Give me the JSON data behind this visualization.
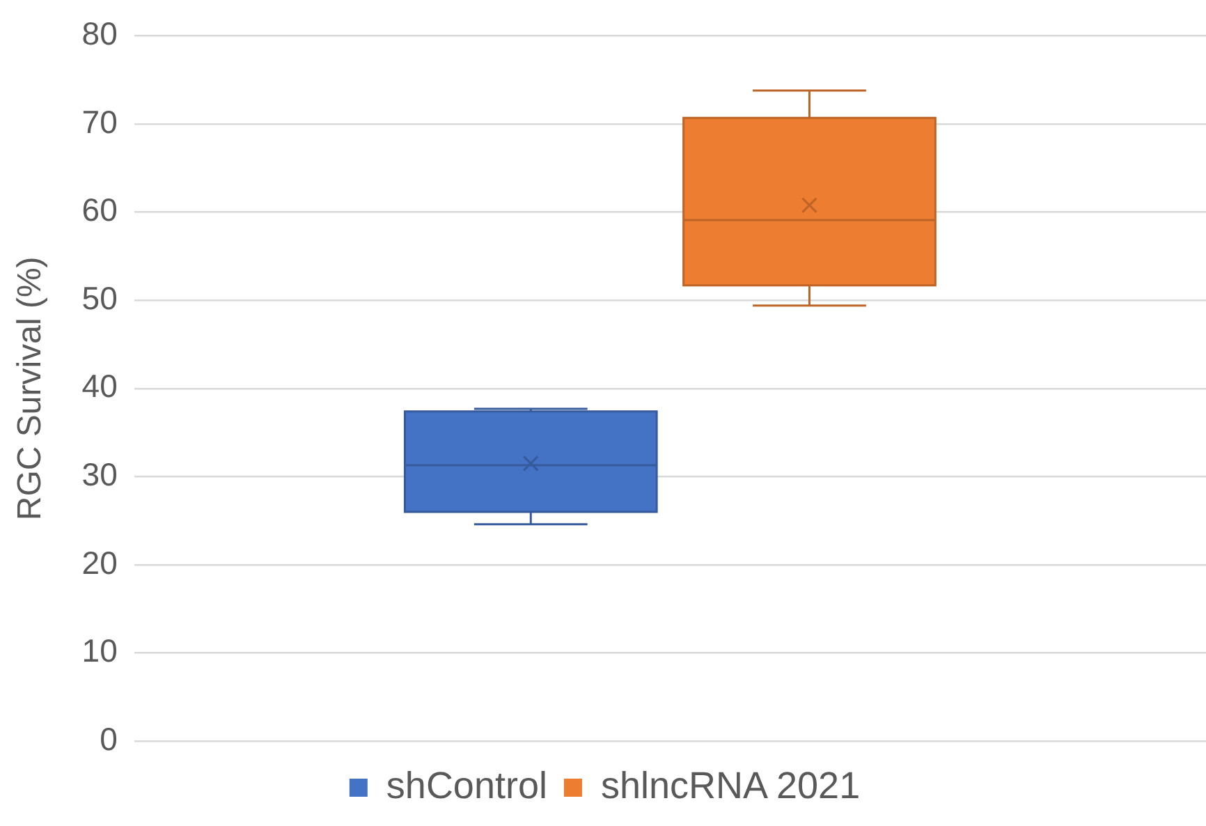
{
  "chart_data": {
    "type": "box",
    "ylabel": "RGC Survival (%)",
    "categories": [
      null
    ],
    "series": [
      {
        "name": "shControl",
        "color": "#4472c4",
        "boxes": [
          {
            "low": 24.6,
            "q1": 26.0,
            "median": 31.3,
            "q3": 37.4,
            "high": 37.7,
            "mean": 31.5
          }
        ]
      },
      {
        "name": "shlncRNA 2021",
        "color": "#ed7d31",
        "boxes": [
          {
            "low": 49.4,
            "q1": 51.7,
            "median": 59.1,
            "q3": 70.7,
            "high": 73.8,
            "mean": 60.8
          }
        ]
      }
    ],
    "ylim": [
      0,
      80
    ],
    "yticks": [
      0,
      10,
      20,
      30,
      40,
      50,
      60,
      70,
      80
    ],
    "grid": "y",
    "legend": "bottom"
  }
}
